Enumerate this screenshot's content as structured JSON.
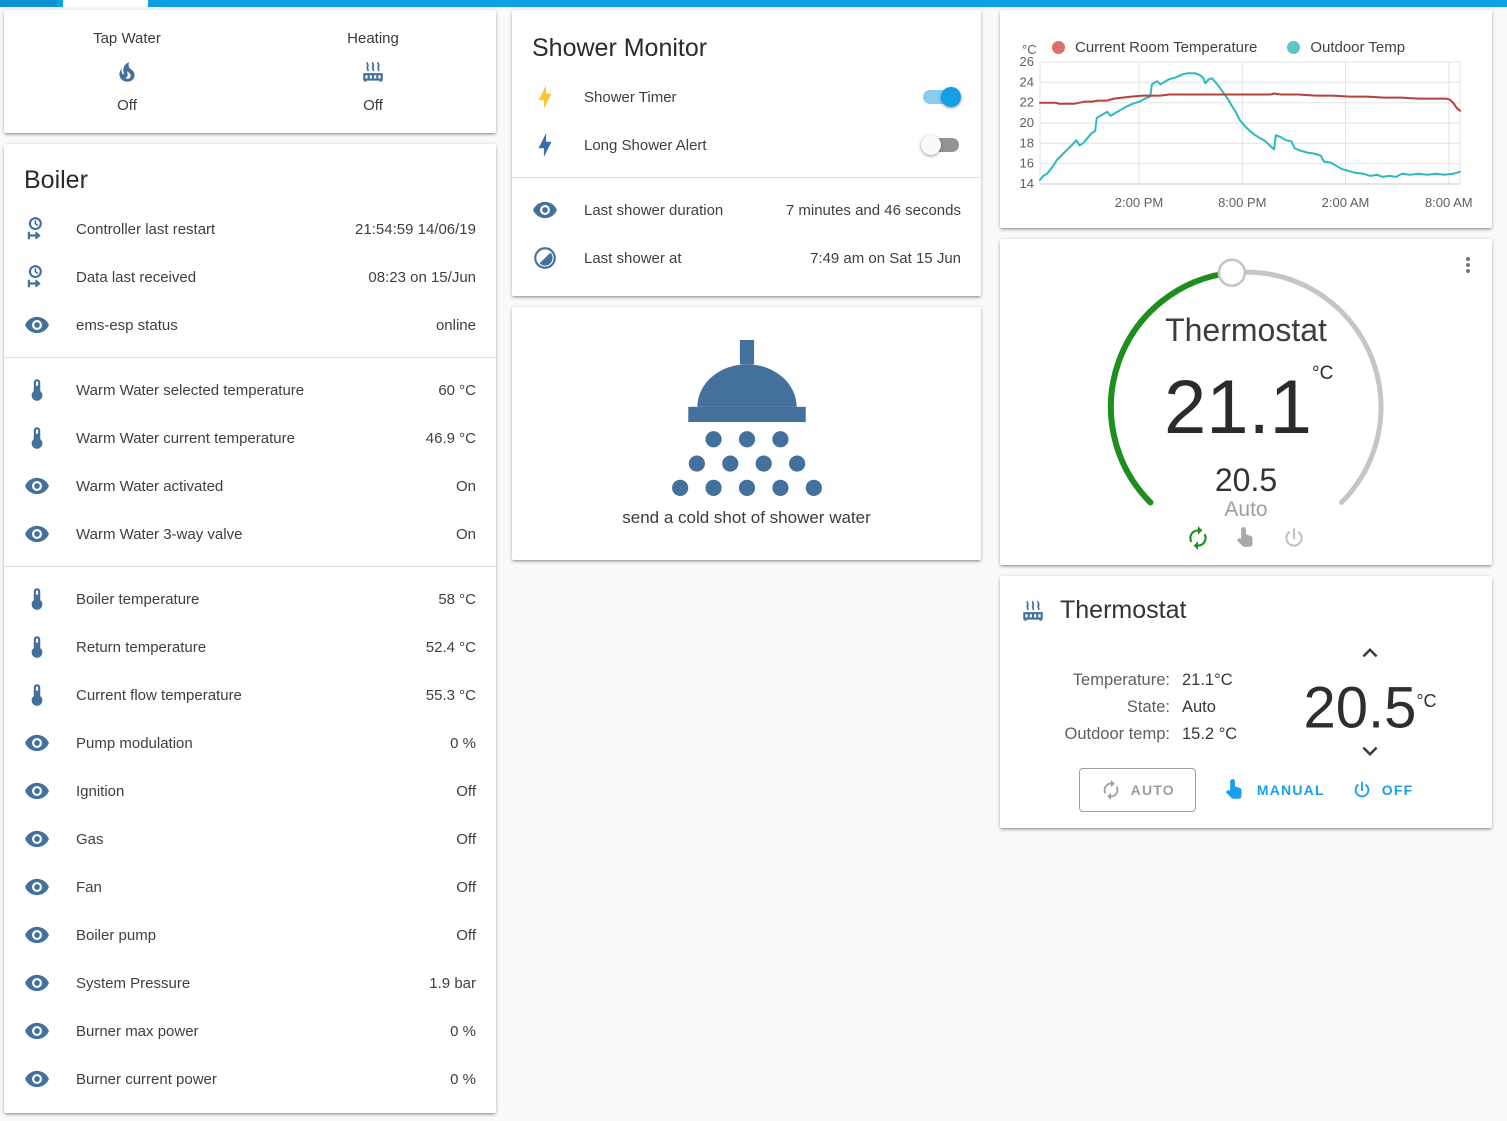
{
  "colors": {
    "accent_blue": "#0ba1e2",
    "icon_blue": "#44719c",
    "toggle_on": "#119fe6",
    "dial_green": "#1e8e1e",
    "button_blue": "#18a0ee"
  },
  "glance": {
    "items": [
      {
        "label": "Tap Water",
        "state": "Off",
        "icon": "fire-icon"
      },
      {
        "label": "Heating",
        "state": "Off",
        "icon": "radiator-icon"
      }
    ]
  },
  "boiler": {
    "title": "Boiler",
    "rows": [
      {
        "icon": "clock-start-icon",
        "label": "Controller last restart",
        "value": "21:54:59 14/06/19"
      },
      {
        "icon": "clock-start-icon",
        "label": "Data last received",
        "value": "08:23 on 15/Jun"
      },
      {
        "icon": "eye-icon",
        "label": "ems-esp status",
        "value": "online"
      },
      {
        "icon": "thermometer-icon",
        "label": "Warm Water selected temperature",
        "value": "60 °C"
      },
      {
        "icon": "thermometer-icon",
        "label": "Warm Water current temperature",
        "value": "46.9 °C"
      },
      {
        "icon": "eye-icon",
        "label": "Warm Water activated",
        "value": "On"
      },
      {
        "icon": "eye-icon",
        "label": "Warm Water 3-way valve",
        "value": "On"
      },
      {
        "icon": "thermometer-icon",
        "label": "Boiler temperature",
        "value": "58 °C"
      },
      {
        "icon": "thermometer-icon",
        "label": "Return temperature",
        "value": "52.4 °C"
      },
      {
        "icon": "thermometer-icon",
        "label": "Current flow temperature",
        "value": "55.3 °C"
      },
      {
        "icon": "eye-icon",
        "label": "Pump modulation",
        "value": "0 %"
      },
      {
        "icon": "eye-icon",
        "label": "Ignition",
        "value": "Off"
      },
      {
        "icon": "eye-icon",
        "label": "Gas",
        "value": "Off"
      },
      {
        "icon": "eye-icon",
        "label": "Fan",
        "value": "Off"
      },
      {
        "icon": "eye-icon",
        "label": "Boiler pump",
        "value": "Off"
      },
      {
        "icon": "eye-icon",
        "label": "System Pressure",
        "value": "1.9 bar"
      },
      {
        "icon": "eye-icon",
        "label": "Burner max power",
        "value": "0 %"
      },
      {
        "icon": "eye-icon",
        "label": "Burner current power",
        "value": "0 %"
      }
    ]
  },
  "shower_monitor": {
    "title": "Shower Monitor",
    "toggles": [
      {
        "label": "Shower Timer",
        "state": "on",
        "icon": "flash-icon-yellow"
      },
      {
        "label": "Long Shower Alert",
        "state": "off",
        "icon": "flash-icon-blue"
      }
    ],
    "info": [
      {
        "icon": "eye-icon",
        "label": "Last shower duration",
        "value": "7 minutes and 46 seconds"
      },
      {
        "icon": "clock-icon",
        "label": "Last shower at",
        "value": "7:49 am on Sat 15 Jun"
      }
    ]
  },
  "shower_action": {
    "label": "send a cold shot of shower water",
    "icon": "shower-head-icon"
  },
  "chart_data": {
    "type": "line",
    "unit": "°C",
    "ylim": [
      14,
      26
    ],
    "yticks": [
      26,
      24,
      22,
      20,
      18,
      16,
      14
    ],
    "x_tick_labels": [
      "2:00 PM",
      "8:00 PM",
      "2:00 AM",
      "8:00 AM"
    ],
    "x_tick_hours": [
      5.75,
      11.75,
      17.75,
      23.75
    ],
    "x_range_hours": [
      0,
      24.4
    ],
    "grid": true,
    "legend_position": "top",
    "series": [
      {
        "name": "Current Room Temperature",
        "color": "#b5403c",
        "legend_color": "#d9706c",
        "points": [
          [
            0,
            22.0
          ],
          [
            0.9,
            22.0
          ],
          [
            1.1,
            21.9
          ],
          [
            2.0,
            21.9
          ],
          [
            2.3,
            22.0
          ],
          [
            2.6,
            22.1
          ],
          [
            3.0,
            22.1
          ],
          [
            3.4,
            22.2
          ],
          [
            3.9,
            22.2
          ],
          [
            4.3,
            22.4
          ],
          [
            4.8,
            22.5
          ],
          [
            5.3,
            22.6
          ],
          [
            6.0,
            22.7
          ],
          [
            7.0,
            22.7
          ],
          [
            7.5,
            22.8
          ],
          [
            8.5,
            22.8
          ],
          [
            9.5,
            22.8
          ],
          [
            10.5,
            22.8
          ],
          [
            11.5,
            22.8
          ],
          [
            12.5,
            22.8
          ],
          [
            13.4,
            22.8
          ],
          [
            13.6,
            22.9
          ],
          [
            14.0,
            22.8
          ],
          [
            15.0,
            22.8
          ],
          [
            16.0,
            22.7
          ],
          [
            17.0,
            22.7
          ],
          [
            18.0,
            22.6
          ],
          [
            19.0,
            22.6
          ],
          [
            20.0,
            22.5
          ],
          [
            21.0,
            22.5
          ],
          [
            22.0,
            22.4
          ],
          [
            23.0,
            22.4
          ],
          [
            23.6,
            22.4
          ],
          [
            23.8,
            22.3
          ],
          [
            24.0,
            22.0
          ],
          [
            24.2,
            21.5
          ],
          [
            24.4,
            21.2
          ]
        ]
      },
      {
        "name": "Outdoor Temp",
        "color": "#2ebabc",
        "legend_color": "#5ac6c8",
        "points": [
          [
            0,
            14.4
          ],
          [
            0.2,
            14.8
          ],
          [
            0.4,
            15.0
          ],
          [
            0.6,
            15.4
          ],
          [
            0.8,
            15.9
          ],
          [
            1.0,
            16.4
          ],
          [
            1.3,
            16.9
          ],
          [
            1.6,
            17.4
          ],
          [
            1.9,
            17.9
          ],
          [
            2.1,
            18.3
          ],
          [
            2.3,
            17.8
          ],
          [
            2.5,
            18.0
          ],
          [
            2.8,
            18.6
          ],
          [
            3.0,
            19.0
          ],
          [
            3.2,
            19.2
          ],
          [
            3.3,
            20.5
          ],
          [
            3.6,
            20.8
          ],
          [
            3.9,
            21.1
          ],
          [
            4.1,
            20.7
          ],
          [
            4.4,
            21.0
          ],
          [
            4.7,
            21.3
          ],
          [
            5.0,
            21.6
          ],
          [
            5.4,
            21.9
          ],
          [
            5.8,
            22.1
          ],
          [
            6.1,
            22.4
          ],
          [
            6.4,
            22.6
          ],
          [
            6.5,
            23.8
          ],
          [
            6.8,
            24.1
          ],
          [
            7.0,
            23.8
          ],
          [
            7.2,
            24.0
          ],
          [
            7.5,
            24.3
          ],
          [
            7.9,
            24.5
          ],
          [
            8.3,
            24.8
          ],
          [
            8.6,
            24.9
          ],
          [
            9.0,
            24.9
          ],
          [
            9.3,
            24.7
          ],
          [
            9.5,
            24.4
          ],
          [
            9.6,
            23.9
          ],
          [
            9.8,
            24.3
          ],
          [
            10.0,
            24.4
          ],
          [
            10.3,
            23.8
          ],
          [
            10.6,
            23.1
          ],
          [
            10.9,
            22.4
          ],
          [
            11.1,
            21.8
          ],
          [
            11.4,
            21.0
          ],
          [
            11.6,
            20.3
          ],
          [
            11.9,
            19.7
          ],
          [
            12.2,
            19.2
          ],
          [
            12.5,
            18.8
          ],
          [
            12.8,
            18.5
          ],
          [
            13.1,
            18.2
          ],
          [
            13.4,
            17.7
          ],
          [
            13.6,
            17.4
          ],
          [
            13.7,
            18.8
          ],
          [
            14.0,
            18.6
          ],
          [
            14.3,
            18.3
          ],
          [
            14.6,
            18.2
          ],
          [
            14.8,
            17.5
          ],
          [
            15.1,
            17.3
          ],
          [
            15.5,
            17.1
          ],
          [
            15.9,
            17.0
          ],
          [
            16.3,
            16.8
          ],
          [
            16.5,
            16.2
          ],
          [
            16.9,
            16.1
          ],
          [
            17.2,
            15.8
          ],
          [
            17.5,
            15.5
          ],
          [
            17.9,
            15.3
          ],
          [
            18.3,
            15.1
          ],
          [
            18.8,
            15.0
          ],
          [
            19.2,
            14.8
          ],
          [
            19.6,
            14.9
          ],
          [
            19.9,
            14.7
          ],
          [
            20.3,
            14.8
          ],
          [
            20.7,
            14.7
          ],
          [
            21.0,
            15.0
          ],
          [
            21.5,
            14.9
          ],
          [
            22.0,
            15.0
          ],
          [
            22.5,
            14.9
          ],
          [
            23.0,
            15.0
          ],
          [
            23.5,
            14.9
          ],
          [
            24.0,
            15.0
          ],
          [
            24.2,
            15.1
          ],
          [
            24.4,
            15.2
          ]
        ]
      }
    ]
  },
  "dial": {
    "title": "Thermostat",
    "current": "21.1",
    "unit": "°C",
    "setpoint": "20.5",
    "mode": "Auto"
  },
  "thermostat": {
    "title": "Thermostat",
    "info": [
      {
        "label": "Temperature:",
        "value": "21.1°C"
      },
      {
        "label": "State:",
        "value": "Auto"
      },
      {
        "label": "Outdoor temp:",
        "value": "15.2 °C"
      }
    ],
    "setpoint": "20.5",
    "setpoint_unit": "°C",
    "buttons": {
      "auto": "AUTO",
      "manual": "MANUAL",
      "off": "OFF"
    }
  }
}
